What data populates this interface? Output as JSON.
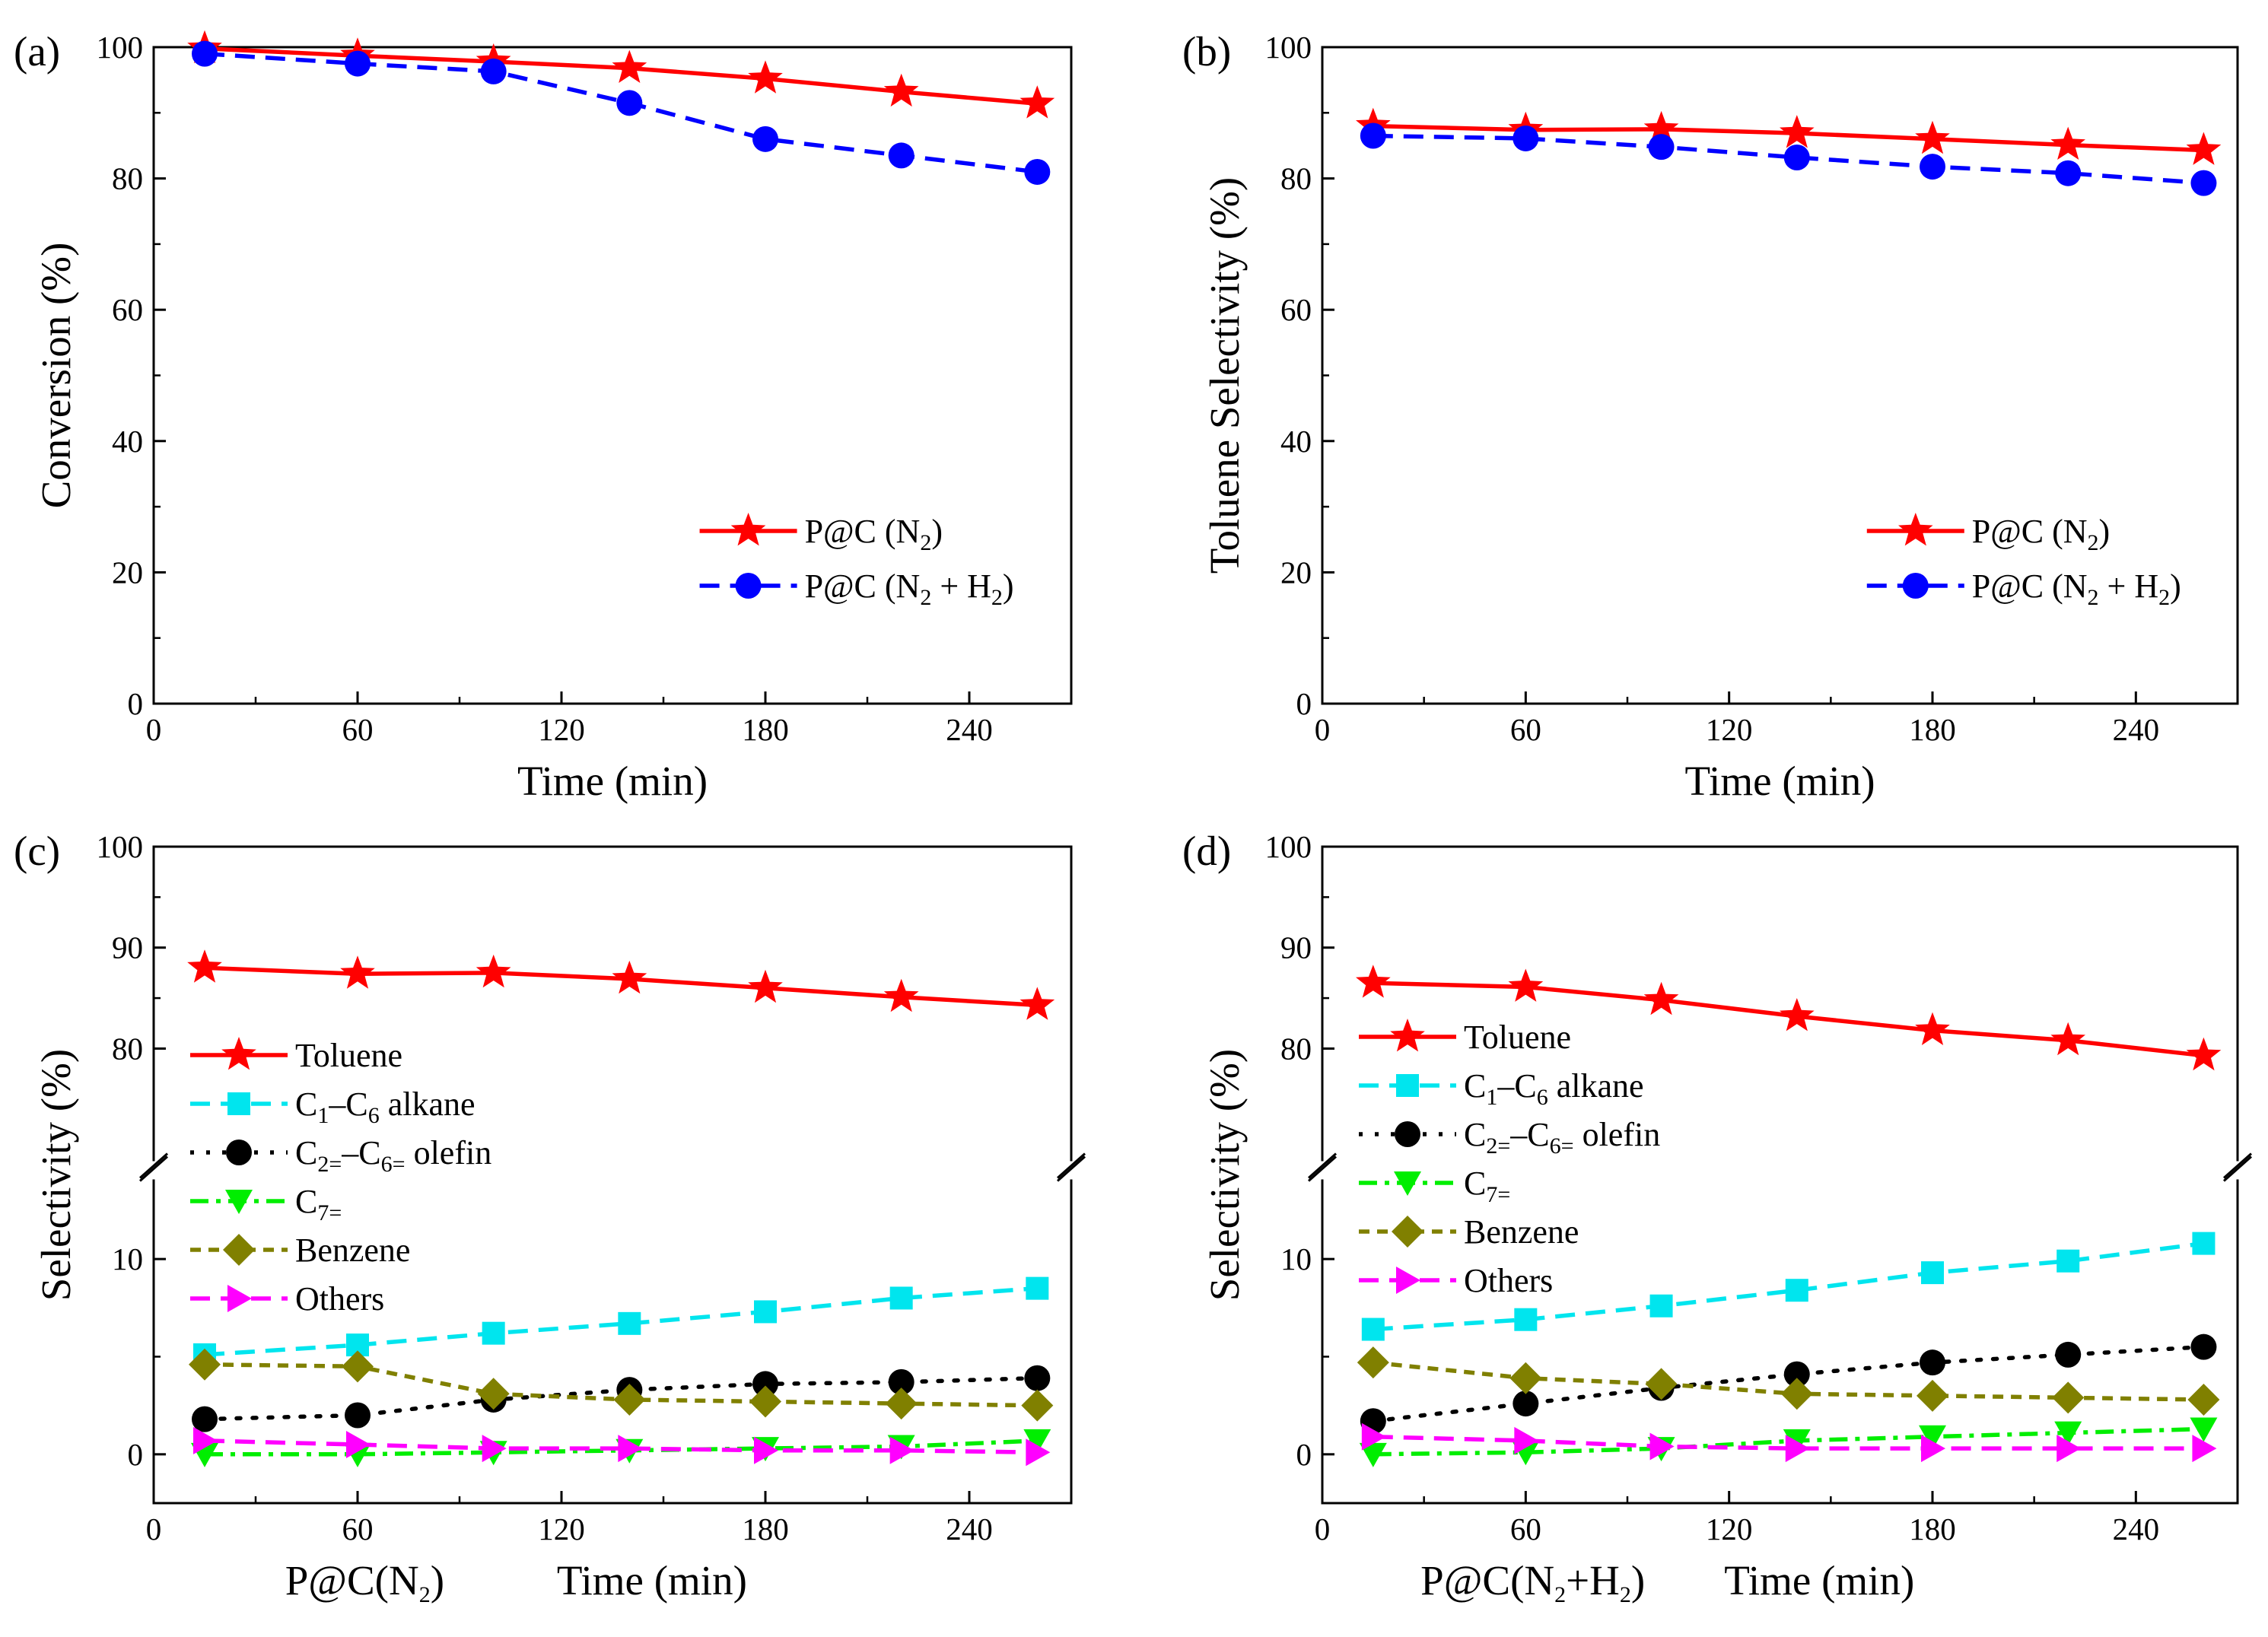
{
  "chart_data": [
    {
      "panel": "(a)",
      "type": "line",
      "xlabel": "Time (min)",
      "ylabel": "Conversion (%)",
      "xlim": [
        0,
        270
      ],
      "ylim": [
        0,
        100
      ],
      "xticks": [
        "0",
        "60",
        "120",
        "180",
        "240"
      ],
      "yticks": [
        "0",
        "20",
        "40",
        "60",
        "80",
        "100"
      ],
      "legend_position": "bottom-right",
      "x": [
        15,
        60,
        100,
        140,
        180,
        220,
        260
      ],
      "series": [
        {
          "name": "P@C (N2)",
          "label_main": "P@C (N",
          "label_sub": "2",
          "label_end": ")",
          "color": "#ff0000",
          "marker": "star",
          "dash": "solid",
          "values": [
            99.8,
            98.7,
            97.8,
            96.8,
            95.2,
            93.2,
            91.4
          ]
        },
        {
          "name": "P@C (N2 + H2)",
          "label_main": "P@C (N",
          "label_sub": "2",
          "label_mid": " + H",
          "label_sub2": "2",
          "label_end": ")",
          "color": "#0000ff",
          "marker": "circle",
          "dash": "dash",
          "values": [
            99.0,
            97.5,
            96.3,
            91.5,
            86.0,
            83.5,
            81.0
          ]
        }
      ]
    },
    {
      "panel": "(b)",
      "type": "line",
      "xlabel": "Time (min)",
      "ylabel": "Toluene Selectivity (%)",
      "xlim": [
        0,
        270
      ],
      "ylim": [
        0,
        100
      ],
      "xticks": [
        "0",
        "60",
        "120",
        "180",
        "240"
      ],
      "yticks": [
        "0",
        "20",
        "40",
        "60",
        "80",
        "100"
      ],
      "legend_position": "bottom-right",
      "x": [
        15,
        60,
        100,
        140,
        180,
        220,
        260
      ],
      "series": [
        {
          "name": "P@C (N2)",
          "label_main": "P@C (N",
          "label_sub": "2",
          "label_end": ")",
          "color": "#ff0000",
          "marker": "star",
          "dash": "solid",
          "values": [
            88.0,
            87.4,
            87.5,
            86.9,
            86.0,
            85.1,
            84.3
          ]
        },
        {
          "name": "P@C (N2 + H2)",
          "label_main": "P@C (N",
          "label_sub": "2",
          "label_mid": " + H",
          "label_sub2": "2",
          "label_end": ")",
          "color": "#0000ff",
          "marker": "circle",
          "dash": "dash",
          "values": [
            86.5,
            86.1,
            84.8,
            83.2,
            81.8,
            80.8,
            79.3
          ]
        }
      ]
    },
    {
      "panel": "(c)",
      "type": "line",
      "xlabel": "Time (min)",
      "xlabel_prefix": "P@C(N",
      "xlabel_prefix_sub": "2",
      "xlabel_prefix_end": ")",
      "ylabel": "Selectivity (%)",
      "xlim": [
        0,
        270
      ],
      "ylim_lower": [
        -2.5,
        14
      ],
      "ylim_upper": [
        69,
        100
      ],
      "axis_break": true,
      "xticks": [
        "0",
        "60",
        "120",
        "180",
        "240"
      ],
      "yticks_lower": [
        "0",
        "10"
      ],
      "yticks_upper": [
        "80",
        "90",
        "100"
      ],
      "legend_position": "left",
      "x": [
        15,
        60,
        100,
        140,
        180,
        220,
        260
      ],
      "series": [
        {
          "name": "Toluene",
          "label_main": "Toluene",
          "color": "#ff0000",
          "marker": "star",
          "dash": "solid",
          "values": [
            88.0,
            87.4,
            87.5,
            86.9,
            86.0,
            85.1,
            84.3
          ]
        },
        {
          "name": "C1–C6 alkane",
          "label_main": "C",
          "label_sub": "1",
          "label_mid": "–C",
          "label_sub2": "6",
          "label_end": " alkane",
          "color": "#00e5ee",
          "marker": "square",
          "dash": "dash",
          "values": [
            5.1,
            5.6,
            6.2,
            6.7,
            7.3,
            8.0,
            8.5
          ]
        },
        {
          "name": "C2=–C6= olefin",
          "label_main": "C",
          "label_sub": "2=",
          "label_mid": "–C",
          "label_sub2": "6=",
          "label_end": " olefin",
          "color": "#000000",
          "marker": "circle",
          "dash": "dot",
          "values": [
            1.8,
            2.0,
            2.8,
            3.3,
            3.6,
            3.7,
            3.9
          ]
        },
        {
          "name": "C7=",
          "label_main": "C",
          "label_sub": "7=",
          "color": "#00ee00",
          "marker": "tri-down",
          "dash": "dashdot",
          "values": [
            0.0,
            0.0,
            0.1,
            0.2,
            0.3,
            0.4,
            0.7
          ]
        },
        {
          "name": "Benzene",
          "label_main": "Benzene",
          "color": "#808000",
          "marker": "diamond",
          "dash": "shortdash",
          "values": [
            4.6,
            4.5,
            3.1,
            2.8,
            2.7,
            2.6,
            2.5
          ]
        },
        {
          "name": "Others",
          "label_main": "Others",
          "color": "#ff00ff",
          "marker": "tri-right",
          "dash": "dash",
          "values": [
            0.7,
            0.5,
            0.3,
            0.3,
            0.2,
            0.2,
            0.1
          ]
        }
      ]
    },
    {
      "panel": "(d)",
      "type": "line",
      "xlabel": "Time (min)",
      "xlabel_prefix": "P@C(N",
      "xlabel_prefix_sub": "2",
      "xlabel_prefix_mid": "+H",
      "xlabel_prefix_sub2": "2",
      "xlabel_prefix_end": ")",
      "ylabel": "Selectivity (%)",
      "xlim": [
        0,
        270
      ],
      "ylim_lower": [
        -2.5,
        14
      ],
      "ylim_upper": [
        69,
        100
      ],
      "axis_break": true,
      "xticks": [
        "0",
        "60",
        "120",
        "180",
        "240"
      ],
      "yticks_lower": [
        "0",
        "10"
      ],
      "yticks_upper": [
        "80",
        "90",
        "100"
      ],
      "legend_position": "left",
      "x": [
        15,
        60,
        100,
        140,
        180,
        220,
        260
      ],
      "series": [
        {
          "name": "Toluene",
          "label_main": "Toluene",
          "color": "#ff0000",
          "marker": "star",
          "dash": "solid",
          "values": [
            86.5,
            86.1,
            84.8,
            83.2,
            81.8,
            80.8,
            79.3
          ]
        },
        {
          "name": "C1–C6 alkane",
          "label_main": "C",
          "label_sub": "1",
          "label_mid": "–C",
          "label_sub2": "6",
          "label_end": " alkane",
          "color": "#00e5ee",
          "marker": "square",
          "dash": "dash",
          "values": [
            6.4,
            6.9,
            7.6,
            8.4,
            9.3,
            9.9,
            10.8
          ]
        },
        {
          "name": "C2=–C6= olefin",
          "label_main": "C",
          "label_sub": "2=",
          "label_mid": "–C",
          "label_sub2": "6=",
          "label_end": " olefin",
          "color": "#000000",
          "marker": "circle",
          "dash": "dot",
          "values": [
            1.7,
            2.6,
            3.4,
            4.1,
            4.7,
            5.1,
            5.5
          ]
        },
        {
          "name": "C7=",
          "label_main": "C",
          "label_sub": "7=",
          "color": "#00ee00",
          "marker": "tri-down",
          "dash": "dashdot",
          "values": [
            0.0,
            0.1,
            0.3,
            0.7,
            0.9,
            1.1,
            1.3
          ]
        },
        {
          "name": "Benzene",
          "label_main": "Benzene",
          "color": "#808000",
          "marker": "diamond",
          "dash": "shortdash",
          "values": [
            4.7,
            3.9,
            3.6,
            3.1,
            3.0,
            2.9,
            2.8
          ]
        },
        {
          "name": "Others",
          "label_main": "Others",
          "color": "#ff00ff",
          "marker": "tri-right",
          "dash": "dash",
          "values": [
            0.9,
            0.7,
            0.4,
            0.3,
            0.3,
            0.3,
            0.3
          ]
        }
      ]
    }
  ]
}
